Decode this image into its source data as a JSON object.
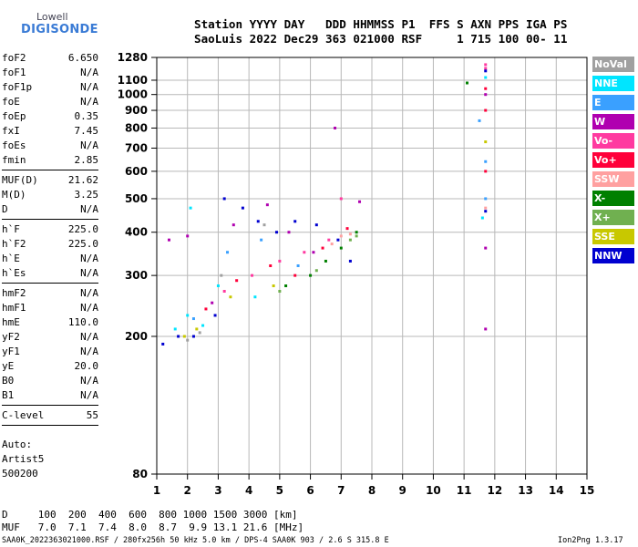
{
  "logo": {
    "line1": "Lowell",
    "line2": "DIGISONDE"
  },
  "header": {
    "line1": "Station YYYY DAY   DDD HHMMSS P1  FFS S AXN PPS IGA PS",
    "line2": "SaoLuis 2022 Dec29 363 021000 RSF     1 715 100 00- 11"
  },
  "params": {
    "group1": [
      {
        "label": "foF2",
        "value": "6.650"
      },
      {
        "label": "foF1",
        "value": "N/A"
      },
      {
        "label": "foF1p",
        "value": "N/A"
      },
      {
        "label": "foE",
        "value": "N/A"
      },
      {
        "label": "foEp",
        "value": "0.35"
      },
      {
        "label": "fxI",
        "value": "7.45"
      },
      {
        "label": "foEs",
        "value": "N/A"
      },
      {
        "label": "fmin",
        "value": "2.85"
      }
    ],
    "group2": [
      {
        "label": "MUF(D)",
        "value": "21.62"
      },
      {
        "label": "M(D)",
        "value": "3.25"
      },
      {
        "label": "D",
        "value": "N/A"
      }
    ],
    "group3": [
      {
        "label": "h`F",
        "value": "225.0"
      },
      {
        "label": "h`F2",
        "value": "225.0"
      },
      {
        "label": "h`E",
        "value": "N/A"
      },
      {
        "label": "h`Es",
        "value": "N/A"
      }
    ],
    "group4": [
      {
        "label": "hmF2",
        "value": "N/A"
      },
      {
        "label": "hmF1",
        "value": "N/A"
      },
      {
        "label": "hmE",
        "value": "110.0"
      },
      {
        "label": "yF2",
        "value": "N/A"
      },
      {
        "label": "yF1",
        "value": "N/A"
      },
      {
        "label": "yE",
        "value": "20.0"
      },
      {
        "label": "B0",
        "value": "N/A"
      },
      {
        "label": "B1",
        "value": "N/A"
      }
    ],
    "group5": [
      {
        "label": "C-level",
        "value": "55"
      }
    ]
  },
  "auto": {
    "line1": "Auto:",
    "line2": "Artist5",
    "line3": "500200"
  },
  "legend": [
    {
      "label": "NoVal",
      "color": "#a0a0a0"
    },
    {
      "label": "NNE",
      "color": "#00e5ff"
    },
    {
      "label": "E",
      "color": "#3aa0ff"
    },
    {
      "label": "W",
      "color": "#b000b0"
    },
    {
      "label": "Vo-",
      "color": "#ff3aa0"
    },
    {
      "label": "Vo+",
      "color": "#ff003a"
    },
    {
      "label": "SSW",
      "color": "#ffa0a0"
    },
    {
      "label": "X-",
      "color": "#008000"
    },
    {
      "label": "X+",
      "color": "#70b050"
    },
    {
      "label": "SSE",
      "color": "#c8c800"
    },
    {
      "label": "NNW",
      "color": "#0000d0"
    }
  ],
  "footer": {
    "row1": "D     100  200  400  600  800 1000 1500 3000 [km]",
    "row2": "MUF   7.0  7.1  7.4  8.0  8.7  9.9 13.1 21.6 [MHz]",
    "info": "SAA0K_2022363021000.RSF / 280fx256h 50 kHz 5.0 km / DPS-4 SAA0K 903 / 2.6 S 315.8 E",
    "version": "Ion2Png 1.3.17"
  },
  "chart_data": {
    "type": "scatter",
    "xlabel": "",
    "ylabel": "",
    "xlim": [
      1,
      15
    ],
    "ylim": [
      80,
      1280
    ],
    "y_scale": "log",
    "x_ticks": [
      1,
      2,
      3,
      4,
      5,
      6,
      7,
      8,
      9,
      10,
      11,
      12,
      13,
      14,
      15
    ],
    "y_ticks": [
      80,
      200,
      300,
      400,
      500,
      600,
      700,
      800,
      900,
      1000,
      1100,
      1280
    ],
    "grid": true,
    "series": [
      {
        "name": "NoVal",
        "color": "#a0a0a0",
        "points": [
          [
            2.0,
            195
          ],
          [
            2.4,
            205
          ],
          [
            3.1,
            300
          ],
          [
            4.5,
            420
          ]
        ]
      },
      {
        "name": "NNE",
        "color": "#00e5ff",
        "points": [
          [
            1.6,
            210
          ],
          [
            2.0,
            230
          ],
          [
            2.1,
            470
          ],
          [
            2.5,
            215
          ],
          [
            3.0,
            280
          ],
          [
            4.2,
            260
          ],
          [
            11.6,
            440
          ],
          [
            11.7,
            1120
          ]
        ]
      },
      {
        "name": "E",
        "color": "#3aa0ff",
        "points": [
          [
            2.2,
            225
          ],
          [
            3.3,
            350
          ],
          [
            4.4,
            380
          ],
          [
            5.6,
            320
          ],
          [
            11.7,
            640
          ],
          [
            11.7,
            500
          ],
          [
            11.5,
            840
          ]
        ]
      },
      {
        "name": "W",
        "color": "#b000b0",
        "points": [
          [
            1.4,
            380
          ],
          [
            2.0,
            390
          ],
          [
            2.8,
            250
          ],
          [
            3.5,
            420
          ],
          [
            4.6,
            480
          ],
          [
            5.3,
            400
          ],
          [
            6.1,
            350
          ],
          [
            6.8,
            800
          ],
          [
            7.6,
            490
          ],
          [
            11.7,
            1000
          ],
          [
            11.7,
            360
          ],
          [
            11.7,
            210
          ]
        ]
      },
      {
        "name": "Vo-",
        "color": "#ff3aa0",
        "points": [
          [
            3.2,
            270
          ],
          [
            4.1,
            300
          ],
          [
            5.0,
            330
          ],
          [
            5.8,
            350
          ],
          [
            6.6,
            380
          ],
          [
            7.0,
            500
          ],
          [
            11.7,
            1220
          ],
          [
            11.7,
            1190
          ]
        ]
      },
      {
        "name": "Vo+",
        "color": "#ff003a",
        "points": [
          [
            2.6,
            240
          ],
          [
            3.6,
            290
          ],
          [
            4.7,
            320
          ],
          [
            5.5,
            300
          ],
          [
            6.4,
            360
          ],
          [
            7.2,
            410
          ],
          [
            11.7,
            1040
          ],
          [
            11.7,
            900
          ],
          [
            11.7,
            600
          ]
        ]
      },
      {
        "name": "SSW",
        "color": "#ffa0a0",
        "points": [
          [
            6.7,
            370
          ],
          [
            7.0,
            390
          ],
          [
            7.3,
            395
          ],
          [
            11.7,
            470
          ]
        ]
      },
      {
        "name": "X-",
        "color": "#008000",
        "points": [
          [
            5.2,
            280
          ],
          [
            6.0,
            300
          ],
          [
            6.5,
            330
          ],
          [
            7.0,
            360
          ],
          [
            7.5,
            400
          ],
          [
            11.1,
            1080
          ]
        ]
      },
      {
        "name": "X+",
        "color": "#70b050",
        "points": [
          [
            5.0,
            270
          ],
          [
            6.2,
            310
          ],
          [
            7.3,
            380
          ],
          [
            7.5,
            390
          ]
        ]
      },
      {
        "name": "SSE",
        "color": "#c8c800",
        "points": [
          [
            1.9,
            200
          ],
          [
            2.3,
            210
          ],
          [
            3.4,
            260
          ],
          [
            4.8,
            280
          ],
          [
            11.7,
            730
          ]
        ]
      },
      {
        "name": "NNW",
        "color": "#0000d0",
        "points": [
          [
            1.2,
            190
          ],
          [
            1.7,
            200
          ],
          [
            2.2,
            200
          ],
          [
            2.9,
            230
          ],
          [
            3.2,
            500
          ],
          [
            3.8,
            470
          ],
          [
            4.3,
            430
          ],
          [
            4.9,
            400
          ],
          [
            5.5,
            430
          ],
          [
            6.2,
            420
          ],
          [
            6.9,
            380
          ],
          [
            7.3,
            330
          ],
          [
            11.7,
            1170
          ],
          [
            11.7,
            460
          ]
        ]
      }
    ]
  }
}
